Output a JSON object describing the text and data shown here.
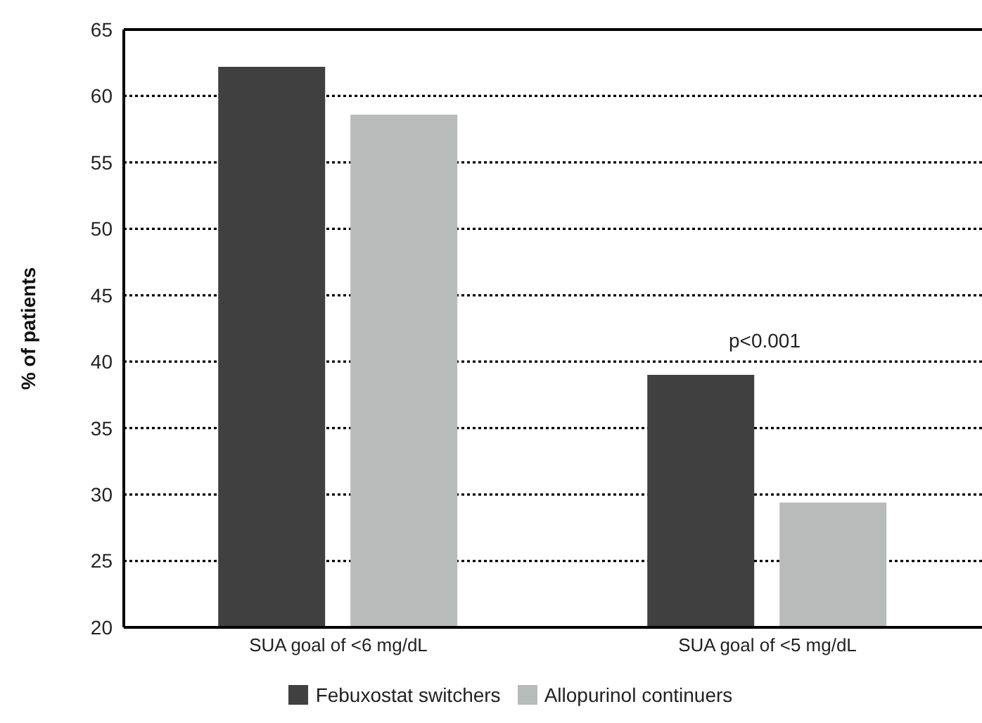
{
  "chart_data": {
    "type": "bar",
    "ylabel": "% of patients",
    "categories": [
      "SUA goal of <6 mg/dL",
      "SUA goal of <5 mg/dL"
    ],
    "series": [
      {
        "name": "Febuxostat switchers",
        "color": "#404040",
        "values": [
          62.2,
          39.0
        ]
      },
      {
        "name": "Allopurinol continuers",
        "color": "#b9baba",
        "values": [
          58.6,
          29.4
        ]
      }
    ],
    "ylim": [
      20,
      65
    ],
    "yticks": [
      20,
      25,
      30,
      35,
      40,
      45,
      50,
      55,
      60,
      65
    ],
    "grid": "y",
    "legend": "bottom",
    "annotations": [
      "p<0.001"
    ]
  }
}
